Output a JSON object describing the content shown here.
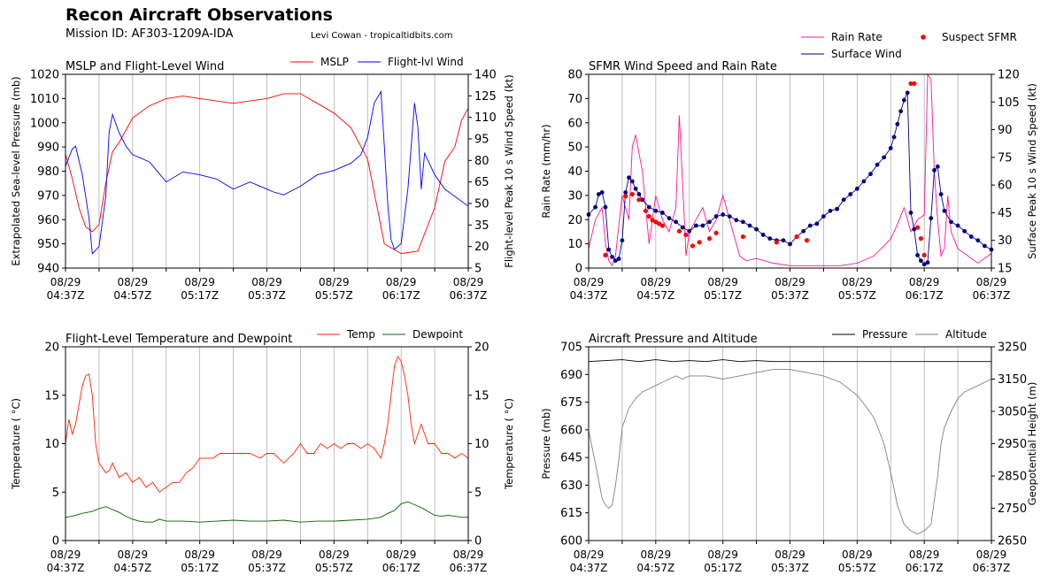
{
  "header": {
    "title": "Recon Aircraft Observations",
    "mission": "Mission ID: AF303-1209A-IDA",
    "credit": "Levi Cowan - tropicaltidbits.com"
  },
  "colors": {
    "mslp": "#ff0000",
    "flight_wind": "#0000ff",
    "rain_rate": "#ff1493",
    "surface_wind": "#000080",
    "suspect_sfmr": "#ff0000",
    "temp": "#ff2200",
    "dewpoint": "#006400",
    "pressure": "#000000",
    "altitude": "#808080",
    "grid": "#b0b0b0"
  },
  "chart_data": [
    {
      "type": "line",
      "title": "MSLP and Flight-Level Wind",
      "xlabel": "",
      "x_ticks": [
        "08/29\n04:37Z",
        "08/29\n04:57Z",
        "08/29\n05:17Z",
        "08/29\n05:37Z",
        "08/29\n05:57Z",
        "08/29\n06:17Z",
        "08/29\n06:37Z"
      ],
      "x_range_min": [
        0,
        120
      ],
      "grid": "x-vertical",
      "legend": "top-right",
      "y_left": {
        "label": "Extrapolated Sea-level Pressure (mb)",
        "range": [
          940,
          1020
        ],
        "ticks": [
          940,
          950,
          960,
          970,
          980,
          990,
          1000,
          1010,
          1020
        ]
      },
      "y_right": {
        "label": "Flight-level Peak 10 s Wind Speed (kt)",
        "range": [
          5,
          140
        ],
        "ticks": [
          5,
          20,
          35,
          50,
          65,
          80,
          95,
          110,
          125,
          140
        ]
      },
      "series": [
        {
          "name": "MSLP",
          "axis": "left",
          "x": [
            0,
            2,
            4,
            6,
            8,
            10,
            12,
            14,
            16,
            18,
            20,
            25,
            30,
            35,
            40,
            45,
            50,
            55,
            60,
            65,
            70,
            75,
            80,
            85,
            90,
            95,
            100,
            105,
            110,
            113,
            116,
            118,
            120
          ],
          "y": [
            987,
            977,
            965,
            957,
            955,
            958,
            975,
            988,
            992,
            997,
            1002,
            1007,
            1010,
            1011,
            1010,
            1009,
            1008,
            1009,
            1010,
            1012,
            1012,
            1008,
            1004,
            998,
            985,
            950,
            946,
            947,
            965,
            984,
            990,
            1001,
            1006
          ]
        },
        {
          "name": "Flight-lvl Wind",
          "axis": "right",
          "x": [
            0,
            2,
            3,
            5,
            7,
            8,
            10,
            12,
            13,
            14,
            16,
            18,
            20,
            25,
            30,
            35,
            40,
            45,
            50,
            55,
            60,
            62,
            65,
            70,
            75,
            80,
            85,
            88,
            90,
            92,
            94,
            95,
            96,
            97,
            98,
            100,
            102,
            104,
            105,
            106,
            107,
            110,
            113,
            116,
            120
          ],
          "y": [
            76,
            88,
            90,
            70,
            40,
            15,
            20,
            55,
            100,
            112,
            99,
            90,
            84,
            79,
            65,
            72,
            70,
            67,
            60,
            65,
            60,
            58,
            56,
            62,
            70,
            73,
            78,
            84,
            96,
            120,
            128,
            90,
            50,
            25,
            18,
            22,
            60,
            120,
            103,
            60,
            85,
            70,
            60,
            55,
            48
          ]
        }
      ]
    },
    {
      "type": "line",
      "title": "SFMR Wind Speed and Rain Rate",
      "xlabel": "",
      "x_ticks": [
        "08/29\n04:37Z",
        "08/29\n04:57Z",
        "08/29\n05:17Z",
        "08/29\n05:37Z",
        "08/29\n05:57Z",
        "08/29\n06:17Z",
        "08/29\n06:37Z"
      ],
      "x_range_min": [
        0,
        120
      ],
      "grid": "x-vertical",
      "legend": "above-right",
      "y_left": {
        "label": "Rain Rate (mm/hr)",
        "range": [
          0,
          80
        ],
        "ticks": [
          0,
          10,
          20,
          30,
          40,
          50,
          60,
          70,
          80
        ]
      },
      "y_right": {
        "label": "Surface Peak 10 s Wind Speed (kt)",
        "range": [
          15,
          120
        ],
        "ticks": [
          15,
          30,
          45,
          60,
          75,
          90,
          105,
          120
        ]
      },
      "series": [
        {
          "name": "Rain Rate",
          "axis": "left",
          "x": [
            0,
            2,
            4,
            5,
            6,
            7,
            8,
            10,
            12,
            13,
            14,
            16,
            18,
            20,
            22,
            24,
            26,
            27,
            28,
            29,
            30,
            32,
            34,
            36,
            38,
            40,
            42,
            44,
            45,
            47,
            50,
            55,
            60,
            65,
            70,
            75,
            80,
            85,
            90,
            92,
            94,
            96,
            98,
            100,
            101,
            102,
            103,
            104,
            105,
            106,
            107,
            108,
            110,
            113,
            116,
            120
          ],
          "y": [
            8,
            20,
            25,
            10,
            3,
            1,
            5,
            30,
            20,
            50,
            55,
            40,
            10,
            30,
            20,
            15,
            25,
            63,
            35,
            5,
            15,
            20,
            25,
            15,
            20,
            30,
            20,
            10,
            5,
            3,
            4,
            2,
            1,
            1,
            1,
            1,
            2,
            5,
            12,
            18,
            25,
            15,
            20,
            22,
            80,
            78,
            40,
            20,
            5,
            8,
            30,
            15,
            8,
            5,
            2,
            6
          ]
        },
        {
          "name": "Surface Wind",
          "axis": "right",
          "x": [
            0,
            2,
            3,
            4,
            5,
            6,
            7,
            8,
            9,
            10,
            11,
            12,
            13,
            14,
            15,
            16,
            18,
            20,
            22,
            24,
            26,
            28,
            30,
            32,
            34,
            36,
            38,
            40,
            42,
            44,
            46,
            48,
            50,
            52,
            54,
            56,
            58,
            60,
            62,
            64,
            66,
            68,
            70,
            72,
            74,
            76,
            78,
            80,
            82,
            84,
            86,
            88,
            90,
            91,
            92,
            93,
            94,
            95,
            96,
            97,
            98,
            99,
            100,
            101,
            102,
            103,
            104,
            105,
            106,
            108,
            110,
            112,
            114,
            116,
            118,
            120
          ],
          "y": [
            44,
            48,
            55,
            56,
            48,
            25,
            21,
            19,
            20,
            30,
            56,
            64,
            62,
            58,
            55,
            52,
            48,
            46,
            45,
            42,
            40,
            37,
            35,
            38,
            38,
            40,
            43,
            44,
            43,
            41,
            40,
            38,
            36,
            33,
            31,
            30,
            30,
            28,
            32,
            35,
            38,
            39,
            43,
            46,
            47,
            52,
            55,
            58,
            62,
            66,
            71,
            75,
            80,
            86,
            93,
            100,
            106,
            110,
            45,
            36,
            22,
            19,
            17,
            18,
            42,
            68,
            70,
            55,
            46,
            40,
            38,
            35,
            32,
            30,
            27,
            25
          ]
        },
        {
          "name": "Suspect SFMR",
          "type": "scatter",
          "axis": "right",
          "x": [
            5,
            11,
            13,
            15,
            17,
            18,
            19,
            20,
            21,
            22,
            27,
            29,
            31,
            33,
            36,
            38,
            46,
            56,
            62,
            65,
            96,
            97,
            98,
            99,
            100
          ],
          "y": [
            22,
            54,
            55,
            52,
            46,
            43,
            41,
            40,
            39,
            38,
            35,
            33,
            27,
            29,
            31,
            34,
            32,
            29,
            32,
            30,
            115,
            115,
            37,
            31,
            22
          ]
        }
      ]
    },
    {
      "type": "line",
      "title": "Flight-Level Temperature and Dewpoint",
      "xlabel": "",
      "x_ticks": [
        "08/29\n04:37Z",
        "08/29\n04:57Z",
        "08/29\n05:17Z",
        "08/29\n05:37Z",
        "08/29\n05:57Z",
        "08/29\n06:17Z",
        "08/29\n06:37Z"
      ],
      "x_range_min": [
        0,
        120
      ],
      "grid": "x-vertical",
      "legend": "top-right",
      "y_left": {
        "label": "Temperature ( $^\\circ$C)",
        "range": [
          0,
          20
        ],
        "ticks": [
          0,
          5,
          10,
          15,
          20
        ]
      },
      "y_right": {
        "label": "Temperature ( $^\\circ$C)",
        "range": [
          0,
          20
        ],
        "ticks": [
          0,
          5,
          10,
          15,
          20
        ]
      },
      "series": [
        {
          "name": "Temp",
          "axis": "left",
          "x": [
            0,
            1,
            2,
            3,
            4,
            5,
            6,
            7,
            8,
            9,
            10,
            11,
            12,
            13,
            14,
            16,
            18,
            20,
            22,
            24,
            26,
            28,
            30,
            32,
            34,
            36,
            38,
            40,
            42,
            44,
            46,
            48,
            50,
            52,
            55,
            58,
            60,
            62,
            65,
            68,
            70,
            72,
            74,
            76,
            78,
            80,
            82,
            84,
            86,
            88,
            90,
            92,
            94,
            95,
            96,
            97,
            98,
            99,
            100,
            101,
            102,
            103,
            104,
            105,
            106,
            107,
            108,
            110,
            112,
            114,
            116,
            118,
            120
          ],
          "y": [
            10,
            12.5,
            11,
            12,
            14,
            16,
            17,
            17.2,
            15,
            10,
            8,
            7.5,
            7,
            7.2,
            8,
            6.5,
            7,
            6,
            6.5,
            5.5,
            6,
            5,
            5.5,
            6,
            6,
            7,
            7.5,
            8.5,
            8.5,
            8.5,
            9,
            9,
            9,
            9,
            9,
            8.5,
            9,
            9,
            8,
            9,
            10,
            9,
            9,
            10,
            9.5,
            10,
            9.5,
            10,
            10,
            9.5,
            10,
            9.5,
            8.5,
            10,
            12,
            15,
            18,
            19,
            18.5,
            17,
            15,
            12,
            10,
            11,
            12,
            11,
            10,
            10,
            9,
            9,
            8.5,
            9,
            8.5
          ]
        },
        {
          "name": "Dewpoint",
          "axis": "left",
          "x": [
            0,
            2,
            5,
            8,
            10,
            12,
            14,
            16,
            18,
            20,
            22,
            24,
            26,
            28,
            30,
            35,
            40,
            45,
            50,
            55,
            60,
            65,
            70,
            75,
            80,
            85,
            90,
            94,
            96,
            98,
            100,
            102,
            104,
            106,
            108,
            110,
            112,
            114,
            116,
            118,
            120
          ],
          "y": [
            2.4,
            2.5,
            2.8,
            3,
            3.3,
            3.5,
            3.2,
            2.9,
            2.5,
            2.2,
            2.0,
            1.9,
            1.9,
            2.2,
            2.0,
            2.0,
            1.9,
            2.0,
            2.1,
            2.0,
            2.0,
            2.1,
            1.9,
            2.0,
            2.0,
            2.1,
            2.2,
            2.4,
            2.8,
            3.1,
            3.8,
            4.0,
            3.7,
            3.4,
            3.0,
            2.6,
            2.5,
            2.6,
            2.5,
            2.4,
            2.4
          ]
        }
      ]
    },
    {
      "type": "line",
      "title": "Aircraft Pressure and Altitude",
      "xlabel": "",
      "x_ticks": [
        "08/29\n04:37Z",
        "08/29\n04:57Z",
        "08/29\n05:17Z",
        "08/29\n05:37Z",
        "08/29\n05:57Z",
        "08/29\n06:17Z",
        "08/29\n06:37Z"
      ],
      "x_range_min": [
        0,
        120
      ],
      "grid": "x-vertical",
      "legend": "top-right",
      "y_left": {
        "label": "Pressure (mb)",
        "range": [
          600,
          705
        ],
        "ticks": [
          600,
          615,
          630,
          645,
          660,
          675,
          690,
          705
        ]
      },
      "y_right": {
        "label": "Geopotential Height (m)",
        "range": [
          2650,
          3250
        ],
        "ticks": [
          2650,
          2750,
          2850,
          2950,
          3050,
          3150,
          3250
        ]
      },
      "series": [
        {
          "name": "Pressure",
          "axis": "left",
          "x": [
            0,
            5,
            10,
            15,
            20,
            25,
            30,
            35,
            40,
            45,
            50,
            55,
            60,
            65,
            70,
            75,
            80,
            85,
            90,
            95,
            100,
            105,
            110,
            115,
            120
          ],
          "y": [
            697,
            697.5,
            698,
            697,
            698,
            697,
            697.5,
            697,
            698,
            697,
            697.5,
            697,
            697,
            697,
            697,
            697,
            697,
            697,
            697,
            697,
            697,
            697,
            697,
            697,
            697
          ]
        },
        {
          "name": "Altitude",
          "axis": "right",
          "x": [
            0,
            2,
            4,
            5,
            6,
            7,
            8,
            9,
            10,
            12,
            14,
            16,
            18,
            20,
            22,
            24,
            26,
            28,
            30,
            35,
            40,
            45,
            50,
            55,
            60,
            65,
            70,
            75,
            80,
            83,
            85,
            88,
            90,
            92,
            94,
            96,
            98,
            100,
            102,
            104,
            105,
            106,
            108,
            110,
            112,
            114,
            116,
            118,
            120
          ],
          "y": [
            2990,
            2890,
            2780,
            2760,
            2750,
            2760,
            2820,
            2900,
            3000,
            3060,
            3090,
            3110,
            3120,
            3130,
            3140,
            3150,
            3160,
            3150,
            3160,
            3160,
            3150,
            3160,
            3170,
            3180,
            3180,
            3170,
            3160,
            3140,
            3100,
            3060,
            3030,
            2950,
            2860,
            2760,
            2700,
            2680,
            2670,
            2680,
            2700,
            2850,
            2950,
            3000,
            3050,
            3090,
            3110,
            3120,
            3130,
            3140,
            3150
          ]
        }
      ]
    }
  ]
}
